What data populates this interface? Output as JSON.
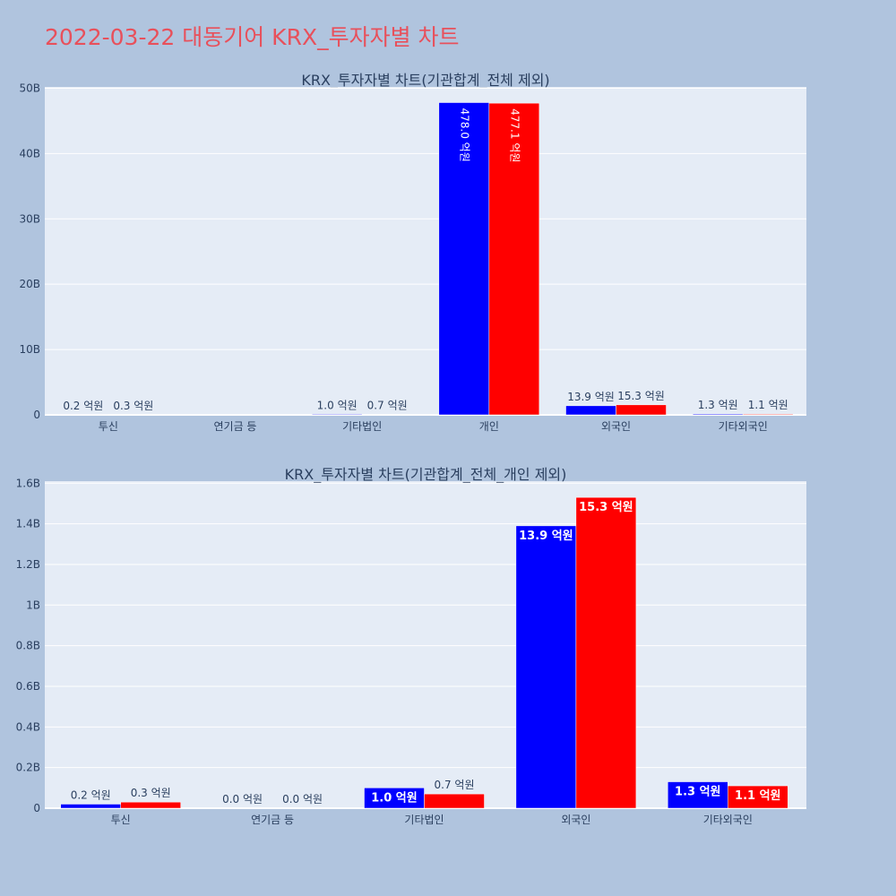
{
  "page_title": "2022-03-22 대동기어 KRX_투자자별 차트",
  "colors": {
    "background": "#b0c4de",
    "plot_bg": "#e5ecf6",
    "title": "#e8505b",
    "text": "#2a3f5f",
    "series_a": "#0000ff",
    "series_b": "#ff0000"
  },
  "chart_data": [
    {
      "type": "bar",
      "title": "KRX_투자자별 차트(기관합계_전체 제외)",
      "categories": [
        "투신",
        "연기금 등",
        "기타법인",
        "개인",
        "외국인",
        "기타외국인"
      ],
      "series": [
        {
          "color": "#0000ff",
          "values": [
            20000000,
            0,
            100000000,
            47800000000,
            1390000000,
            130000000
          ],
          "labels": [
            "0.2 억원",
            "",
            "1.0 억원",
            "478.0 억원",
            "13.9 억원",
            "1.3 억원"
          ]
        },
        {
          "color": "#ff0000",
          "values": [
            30000000,
            0,
            70000000,
            47710000000,
            1530000000,
            110000000
          ],
          "labels": [
            "0.3 억원",
            "",
            "0.7 억원",
            "477.1 억원",
            "15.3 억원",
            "1.1 억원"
          ]
        }
      ],
      "ylim": [
        0,
        50200000000
      ],
      "yticks": [
        0,
        10000000000,
        20000000000,
        30000000000,
        40000000000,
        50000000000
      ],
      "ytick_labels": [
        "0",
        "10B",
        "20B",
        "30B",
        "40B",
        "50B"
      ],
      "grid": true
    },
    {
      "type": "bar",
      "title": "KRX_투자자별 차트(기관합계_전체_개인 제외)",
      "categories": [
        "투신",
        "연기금 등",
        "기타법인",
        "외국인",
        "기타외국인"
      ],
      "series": [
        {
          "color": "#0000ff",
          "values": [
            20000000,
            0,
            100000000,
            1390000000,
            130000000
          ],
          "labels": [
            "0.2 억원",
            "0.0 억원",
            "1.0 억원",
            "13.9 억원",
            "1.3 억원"
          ]
        },
        {
          "color": "#ff0000",
          "values": [
            30000000,
            0,
            70000000,
            1530000000,
            110000000
          ],
          "labels": [
            "0.3 억원",
            "0.0 억원",
            "0.7 억원",
            "15.3 억원",
            "1.1 억원"
          ]
        }
      ],
      "ylim": [
        0,
        1610000000
      ],
      "yticks": [
        0,
        200000000,
        400000000,
        600000000,
        800000000,
        1000000000,
        1200000000,
        1400000000,
        1600000000
      ],
      "ytick_labels": [
        "0",
        "0.2B",
        "0.4B",
        "0.6B",
        "0.8B",
        "1B",
        "1.2B",
        "1.4B",
        "1.6B"
      ],
      "grid": true
    }
  ]
}
